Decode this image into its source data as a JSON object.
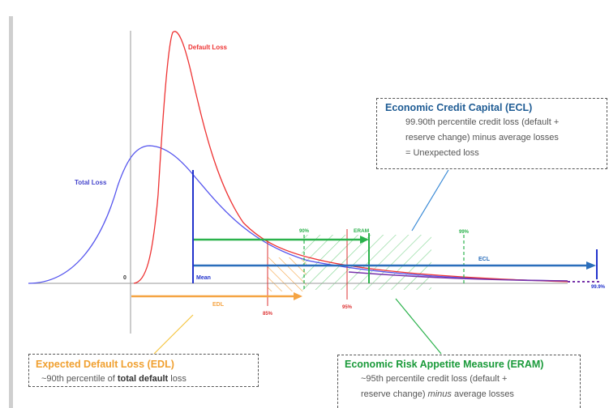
{
  "curves": {
    "default_loss_label": "Default Loss",
    "total_loss_label": "Total Loss",
    "default_loss_color": "#ee3333",
    "total_loss_color": "#5555ee"
  },
  "axis": {
    "zero_label": "0",
    "mean_label": "Mean"
  },
  "percentile_markers": {
    "p85": "85%",
    "p90": "90%",
    "p95": "95%",
    "p99": "99%",
    "p999": "99.9%",
    "eram": "ERAM"
  },
  "arrows": {
    "ecl_label": "ECL",
    "edl_label": "EDL"
  },
  "colors": {
    "ecl": "#2a6ebb",
    "eram": "#2bb24c",
    "edl": "#f5a443",
    "percentile_red": "#dd3333"
  },
  "ecl_box": {
    "title": "Economic Credit Capital (ECL)",
    "line1": "99.90th percentile credit loss (default +",
    "line2": "reserve change) minus average losses",
    "line3": "= Unexpected loss"
  },
  "edl_box": {
    "title": "Expected Default Loss (EDL)",
    "text_before": "~90th percentile of ",
    "text_bold": "total default",
    "text_after": " loss"
  },
  "eram_box": {
    "title": "Economic Risk Appetite Measure (ERAM)",
    "line1": "~95th percentile credit loss (default +",
    "line2_before": "reserve change) ",
    "line2_italic": "minus",
    "line2_after": " average losses"
  }
}
